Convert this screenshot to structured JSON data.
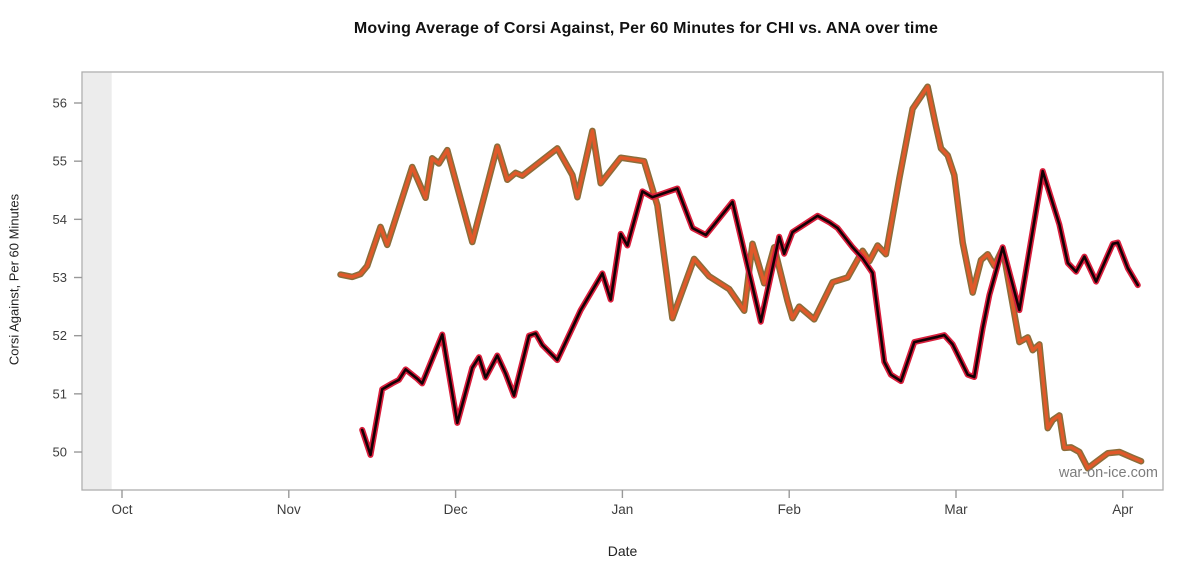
{
  "page": {
    "background": "#ffffff"
  },
  "chart_data": {
    "type": "line",
    "title": "Moving Average of Corsi Against, Per 60 Minutes for CHI vs. ANA over time",
    "xlabel": "Date",
    "ylabel": "Corsi Against, Per 60 Minutes",
    "watermark": "war-on-ice.com",
    "x_ticks": [
      "Oct",
      "Nov",
      "Dec",
      "Jan",
      "Feb",
      "Mar",
      "Apr"
    ],
    "y_ticks": [
      50,
      51,
      52,
      53,
      54,
      55,
      56
    ],
    "ylim": [
      49.35,
      56.55
    ],
    "x_unit": "months_after_oct",
    "grid": false,
    "legend": "none",
    "panel": {
      "band_color": "#ececec",
      "border_color": "#adadad",
      "tick_color": "#999999",
      "label_color": "#3d3d3d",
      "watermark_color": "#7c7c7c"
    },
    "series": [
      {
        "name": "ANA",
        "core_color": "#e0592a",
        "outline_color": "#8b6d3a",
        "core_width": 3.4,
        "outline_width": 6.5,
        "points": [
          [
            1.31,
            53.05
          ],
          [
            1.38,
            53.01
          ],
          [
            1.43,
            53.06
          ],
          [
            1.47,
            53.2
          ],
          [
            1.55,
            53.87
          ],
          [
            1.59,
            53.56
          ],
          [
            1.74,
            54.9
          ],
          [
            1.82,
            54.37
          ],
          [
            1.86,
            55.05
          ],
          [
            1.9,
            54.96
          ],
          [
            1.95,
            55.19
          ],
          [
            2.1,
            53.61
          ],
          [
            2.25,
            55.25
          ],
          [
            2.31,
            54.68
          ],
          [
            2.36,
            54.8
          ],
          [
            2.4,
            54.75
          ],
          [
            2.61,
            55.22
          ],
          [
            2.7,
            54.76
          ],
          [
            2.73,
            54.38
          ],
          [
            2.82,
            55.52
          ],
          [
            2.87,
            54.62
          ],
          [
            2.99,
            55.06
          ],
          [
            3.13,
            55.0
          ],
          [
            3.21,
            54.24
          ],
          [
            3.3,
            52.3
          ],
          [
            3.43,
            53.32
          ],
          [
            3.52,
            53.02
          ],
          [
            3.64,
            52.8
          ],
          [
            3.73,
            52.43
          ],
          [
            3.78,
            53.58
          ],
          [
            3.85,
            52.9
          ],
          [
            3.91,
            53.52
          ],
          [
            3.99,
            52.6
          ],
          [
            4.02,
            52.3
          ],
          [
            4.06,
            52.5
          ],
          [
            4.15,
            52.28
          ],
          [
            4.26,
            52.92
          ],
          [
            4.35,
            53.0
          ],
          [
            4.44,
            53.46
          ],
          [
            4.48,
            53.28
          ],
          [
            4.53,
            53.55
          ],
          [
            4.58,
            53.4
          ],
          [
            4.66,
            54.7
          ],
          [
            4.74,
            55.9
          ],
          [
            4.83,
            56.28
          ],
          [
            4.88,
            55.6
          ],
          [
            4.91,
            55.22
          ],
          [
            4.95,
            55.1
          ],
          [
            4.99,
            54.76
          ],
          [
            5.04,
            53.6
          ],
          [
            5.1,
            52.74
          ],
          [
            5.15,
            53.3
          ],
          [
            5.19,
            53.4
          ],
          [
            5.23,
            53.2
          ],
          [
            5.28,
            53.5
          ],
          [
            5.38,
            51.89
          ],
          [
            5.43,
            51.97
          ],
          [
            5.46,
            51.75
          ],
          [
            5.5,
            51.85
          ],
          [
            5.55,
            50.41
          ],
          [
            5.58,
            50.55
          ],
          [
            5.62,
            50.63
          ],
          [
            5.65,
            50.07
          ],
          [
            5.69,
            50.08
          ],
          [
            5.74,
            50.0
          ],
          [
            5.79,
            49.72
          ],
          [
            5.84,
            49.83
          ],
          [
            5.91,
            49.98
          ],
          [
            5.98,
            50.0
          ],
          [
            6.06,
            49.9
          ],
          [
            6.11,
            49.84
          ]
        ]
      },
      {
        "name": "CHI",
        "core_color": "#140004",
        "outline_color": "#d91f3d",
        "core_width": 2.6,
        "outline_width": 6,
        "points": [
          [
            1.44,
            50.38
          ],
          [
            1.49,
            49.95
          ],
          [
            1.56,
            51.08
          ],
          [
            1.62,
            51.18
          ],
          [
            1.66,
            51.24
          ],
          [
            1.7,
            51.42
          ],
          [
            1.77,
            51.26
          ],
          [
            1.8,
            51.18
          ],
          [
            1.92,
            52.02
          ],
          [
            2.01,
            50.5
          ],
          [
            2.1,
            51.45
          ],
          [
            2.14,
            51.63
          ],
          [
            2.18,
            51.28
          ],
          [
            2.25,
            51.66
          ],
          [
            2.3,
            51.35
          ],
          [
            2.35,
            50.97
          ],
          [
            2.44,
            52.0
          ],
          [
            2.48,
            52.04
          ],
          [
            2.52,
            51.84
          ],
          [
            2.61,
            51.58
          ],
          [
            2.75,
            52.44
          ],
          [
            2.88,
            53.07
          ],
          [
            2.93,
            52.62
          ],
          [
            2.99,
            53.75
          ],
          [
            3.03,
            53.55
          ],
          [
            3.12,
            54.48
          ],
          [
            3.18,
            54.38
          ],
          [
            3.33,
            54.53
          ],
          [
            3.42,
            53.85
          ],
          [
            3.5,
            53.73
          ],
          [
            3.66,
            54.3
          ],
          [
            3.83,
            52.24
          ],
          [
            3.94,
            53.7
          ],
          [
            3.97,
            53.41
          ],
          [
            4.02,
            53.78
          ],
          [
            4.17,
            54.06
          ],
          [
            4.24,
            53.95
          ],
          [
            4.29,
            53.85
          ],
          [
            4.38,
            53.52
          ],
          [
            4.44,
            53.33
          ],
          [
            4.5,
            53.08
          ],
          [
            4.57,
            51.55
          ],
          [
            4.61,
            51.33
          ],
          [
            4.67,
            51.22
          ],
          [
            4.75,
            51.89
          ],
          [
            4.89,
            51.98
          ],
          [
            4.93,
            52.01
          ],
          [
            4.98,
            51.85
          ],
          [
            5.07,
            51.33
          ],
          [
            5.11,
            51.29
          ],
          [
            5.16,
            52.13
          ],
          [
            5.2,
            52.7
          ],
          [
            5.28,
            53.52
          ],
          [
            5.38,
            52.44
          ],
          [
            5.52,
            54.83
          ],
          [
            5.62,
            53.91
          ],
          [
            5.67,
            53.25
          ],
          [
            5.72,
            53.1
          ],
          [
            5.77,
            53.36
          ],
          [
            5.84,
            52.93
          ],
          [
            5.94,
            53.58
          ],
          [
            5.97,
            53.6
          ],
          [
            6.03,
            53.16
          ],
          [
            6.09,
            52.87
          ]
        ]
      }
    ]
  }
}
